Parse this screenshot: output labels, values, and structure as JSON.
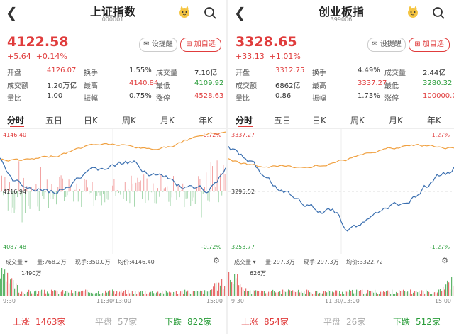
{
  "colors": {
    "up": "#e03c3c",
    "down": "#2a9d3a",
    "line_price": "#3a6fb0",
    "line_avg": "#f0a040"
  },
  "panels": [
    {
      "title": "上证指数",
      "code": "000001",
      "price": "4122.58",
      "change": "+5.64",
      "change_pct": "+0.14%",
      "remind_label": "设提醒",
      "add_label": "加自选",
      "stats": [
        [
          {
            "l": "开盘",
            "v": "4126.07",
            "c": "red"
          },
          {
            "l": "换手",
            "v": "1.55%",
            "c": "dark"
          },
          {
            "l": "成交量",
            "v": "7.10亿",
            "c": "dark"
          }
        ],
        [
          {
            "l": "成交额",
            "v": "1.20万亿",
            "c": "dark"
          },
          {
            "l": "最高",
            "v": "4140.84",
            "c": "red"
          },
          {
            "l": "最低",
            "v": "4109.92",
            "c": "green"
          }
        ],
        [
          {
            "l": "量比",
            "v": "1.00",
            "c": "dark"
          },
          {
            "l": "振幅",
            "v": "0.75%",
            "c": "dark"
          },
          {
            "l": "涨停",
            "v": "4528.63",
            "c": "red"
          }
        ]
      ],
      "tabs": [
        "分时",
        "五日",
        "日K",
        "周K",
        "月K",
        "年K"
      ],
      "y_top": "4146.40",
      "y_mid": "4116.94",
      "y_bot": "4087.48",
      "pct_top": "0.72%",
      "pct_bot": "-0.72%",
      "vol_info": {
        "vol": "量:768.2万",
        "now": "现手:350.0万",
        "avg": "均价:4146.40"
      },
      "vol_max": "1490万",
      "time": {
        "start": "9:30",
        "mid": "11:30/13:00",
        "end": "15:00"
      },
      "up_label": "上涨",
      "up_count": "1463家",
      "flat_label": "平盘",
      "flat_count": "57家",
      "down_label": "下跌",
      "down_count": "822家"
    },
    {
      "title": "创业板指",
      "code": "399006",
      "price": "3328.65",
      "change": "+33.13",
      "change_pct": "+1.01%",
      "remind_label": "设提醒",
      "add_label": "加自选",
      "stats": [
        [
          {
            "l": "开盘",
            "v": "3312.75",
            "c": "red"
          },
          {
            "l": "换手",
            "v": "4.49%",
            "c": "dark"
          },
          {
            "l": "成交量",
            "v": "2.44亿",
            "c": "dark"
          }
        ],
        [
          {
            "l": "成交额",
            "v": "6862亿",
            "c": "dark"
          },
          {
            "l": "最高",
            "v": "3337.27",
            "c": "red"
          },
          {
            "l": "最低",
            "v": "3280.32",
            "c": "green"
          }
        ],
        [
          {
            "l": "量比",
            "v": "0.86",
            "c": "dark"
          },
          {
            "l": "振幅",
            "v": "1.73%",
            "c": "dark"
          },
          {
            "l": "涨停",
            "v": "100000.0",
            "c": "red"
          }
        ]
      ],
      "tabs": [
        "分时",
        "五日",
        "日K",
        "周K",
        "月K",
        "年K"
      ],
      "y_top": "3337.27",
      "y_mid": "3295.52",
      "y_bot": "3253.77",
      "pct_top": "1.27%",
      "pct_bot": "-1.27%",
      "vol_info": {
        "vol": "量:297.3万",
        "now": "现手:297.3万",
        "avg": "均价:3322.72"
      },
      "vol_max": "626万",
      "time": {
        "start": "9:30",
        "mid": "11:30/13:00",
        "end": "15:00"
      },
      "up_label": "上涨",
      "up_count": "854家",
      "flat_label": "平盘",
      "flat_count": "26家",
      "down_label": "下跌",
      "down_count": "512家"
    }
  ]
}
